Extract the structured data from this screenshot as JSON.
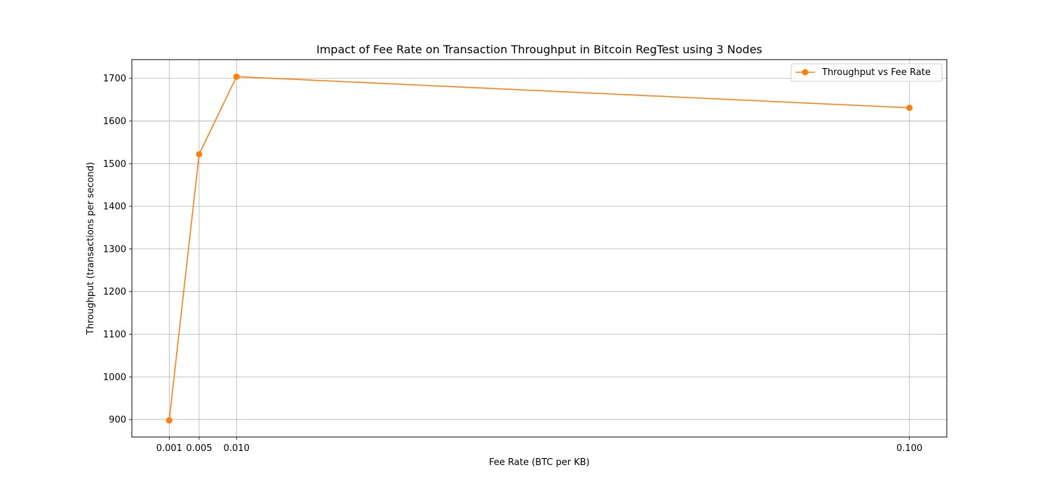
{
  "chart_data": {
    "type": "line",
    "title": "Impact of Fee Rate on Transaction Throughput in Bitcoin RegTest using 3 Nodes",
    "xlabel": "Fee Rate (BTC per KB)",
    "ylabel": "Throughput (transactions per second)",
    "x": [
      0.001,
      0.005,
      0.01,
      0.1
    ],
    "x_tick_labels": [
      "0.001",
      "0.005",
      "0.010",
      "0.100"
    ],
    "y_ticks": [
      900,
      1000,
      1100,
      1200,
      1300,
      1400,
      1500,
      1600,
      1700
    ],
    "xlim": [
      -0.004,
      0.105
    ],
    "ylim": [
      859,
      1744
    ],
    "grid": true,
    "legend_position": "top-right",
    "series": [
      {
        "name": "Throughput vs Fee Rate",
        "values": [
          898,
          1522,
          1704,
          1631
        ],
        "color": "#ff7f0e",
        "marker": "circle"
      }
    ]
  }
}
